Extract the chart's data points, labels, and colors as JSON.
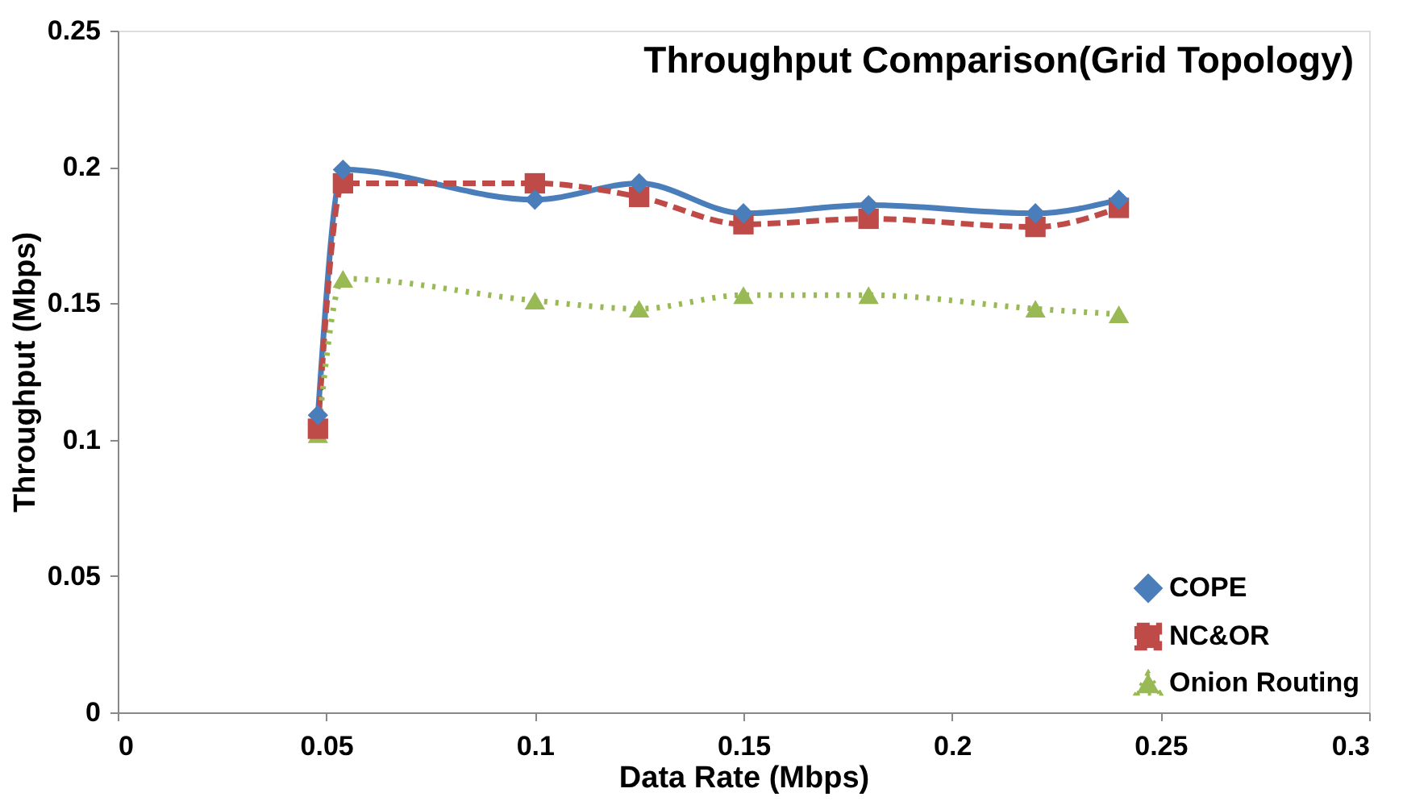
{
  "chart_data": {
    "type": "line",
    "title": "Throughput Comparison(Grid Topology)",
    "xlabel": "Data Rate (Mbps)",
    "ylabel": "Throughput  (Mbps)",
    "x": [
      0.048,
      0.054,
      0.1,
      0.125,
      0.15,
      0.18,
      0.22,
      0.24
    ],
    "series": [
      {
        "name": "COPE",
        "color": "#4a7ebb",
        "marker": "diamond",
        "line_style": "solid",
        "values": [
          0.109,
          0.199,
          0.188,
          0.194,
          0.183,
          0.186,
          0.183,
          0.188
        ]
      },
      {
        "name": "NC&OR",
        "color": "#be4b48",
        "marker": "square",
        "line_style": "dashed",
        "values": [
          0.104,
          0.194,
          0.194,
          0.189,
          0.179,
          0.181,
          0.178,
          0.185
        ]
      },
      {
        "name": "Onion Routing",
        "color": "#98b954",
        "marker": "triangle",
        "line_style": "dotted",
        "values": [
          0.102,
          0.159,
          0.151,
          0.148,
          0.153,
          0.153,
          0.148,
          0.146
        ]
      }
    ],
    "xlim": [
      0,
      0.3
    ],
    "xticks": [
      0,
      0.05,
      0.1,
      0.15,
      0.2,
      0.25,
      0.3
    ],
    "ylim": [
      0,
      0.25
    ],
    "yticks": [
      0,
      0.05,
      0.1,
      0.15,
      0.2,
      0.25
    ],
    "grid": false,
    "legend": "bottom right"
  }
}
